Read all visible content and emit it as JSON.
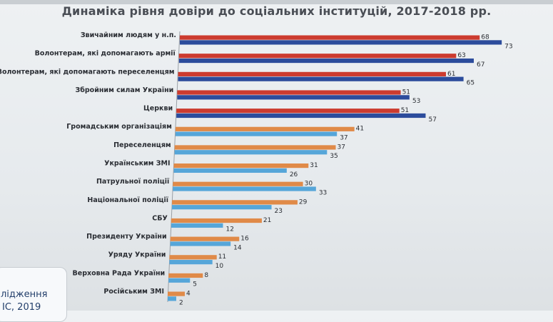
{
  "title": "Динаміка рівня довіри до соціальних інституцій, 2017-2018 рр.",
  "side_note": {
    "line1": "лідження",
    "line2": "ІС, 2019"
  },
  "colors": {
    "series_2017_top": "#cc3b2f",
    "series_2018_top": "#2c4c9c",
    "series_2017_low": "#e08a48",
    "series_2018_low": "#56a6d9"
  },
  "chart_data": {
    "type": "bar",
    "orientation": "horizontal",
    "categories": [
      "Звичайним людям у н.п.",
      "Волонтерам, які допомагають армії",
      "Волонтерам, які допомагають переселенцям",
      "Збройним силам України",
      "Церкви",
      "Громадським організаціям",
      "Переселенцям",
      "Українським ЗМІ",
      "Патрульної поліції",
      "Національної поліції",
      "СБУ",
      "Президенту України",
      "Уряду України",
      "Верховна Рада України",
      "Російським ЗМІ"
    ],
    "series": [
      {
        "values": [
          68,
          63,
          61,
          51,
          51,
          41,
          37,
          31,
          30,
          29,
          21,
          16,
          11,
          8,
          4
        ]
      },
      {
        "values": [
          73,
          67,
          65,
          53,
          57,
          37,
          35,
          26,
          33,
          23,
          12,
          14,
          10,
          5,
          2
        ]
      }
    ],
    "xlim": [
      0,
      80
    ],
    "grid": false,
    "legend": "none"
  }
}
